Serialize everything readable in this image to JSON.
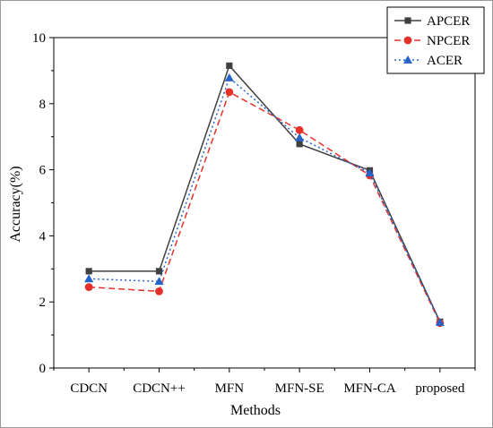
{
  "chart_data": {
    "type": "line",
    "title": "",
    "xlabel": "Methods",
    "ylabel": "Accuracy(%)",
    "categories": [
      "CDCN",
      "CDCN++",
      "MFN",
      "MFN-SE",
      "MFN-CA",
      "proposed"
    ],
    "ylim": [
      0,
      10
    ],
    "yticks": [
      "0",
      "2",
      "4",
      "6",
      "8",
      "10"
    ],
    "grid": false,
    "legend_position": "top-right",
    "series": [
      {
        "name": "APCER",
        "values": [
          2.93,
          2.93,
          9.15,
          6.78,
          5.98,
          1.4
        ],
        "color": "#404040",
        "marker": "square",
        "line": "solid"
      },
      {
        "name": "NPCER",
        "values": [
          2.45,
          2.32,
          8.35,
          7.2,
          5.83,
          1.36
        ],
        "color": "#e8302a",
        "marker": "circle",
        "line": "dashed"
      },
      {
        "name": "ACER",
        "values": [
          2.7,
          2.62,
          8.78,
          6.97,
          5.9,
          1.38
        ],
        "color": "#2563c9",
        "marker": "triangle",
        "line": "dotted"
      }
    ]
  }
}
